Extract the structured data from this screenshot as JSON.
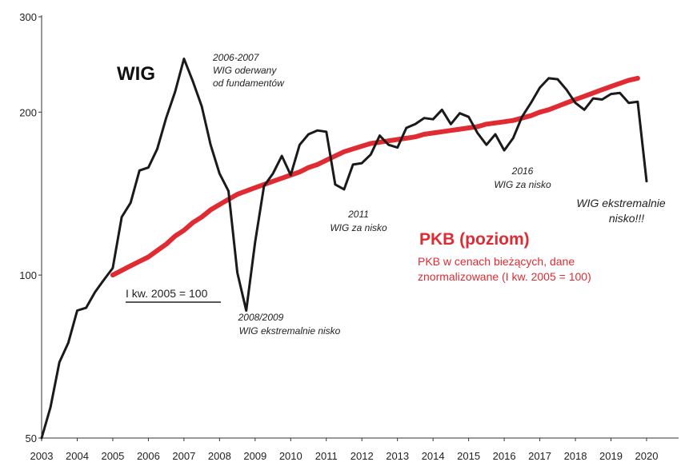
{
  "chart_data": {
    "type": "line",
    "yscale": "log",
    "ylim": [
      50,
      300
    ],
    "xlim": [
      2003,
      2020.9
    ],
    "y_ticks": [
      50,
      100,
      200,
      300
    ],
    "x_ticks": [
      2003,
      2004,
      2005,
      2006,
      2007,
      2008,
      2009,
      2010,
      2011,
      2012,
      2013,
      2014,
      2015,
      2016,
      2017,
      2018,
      2019,
      2020
    ],
    "grid": false,
    "colors": {
      "WIG": "#1a1a1a",
      "PKB": "#e02b33"
    },
    "series": [
      {
        "name": "WIG",
        "x": [
          2003.0,
          2003.25,
          2003.5,
          2003.75,
          2004.0,
          2004.25,
          2004.5,
          2004.75,
          2005.0,
          2005.25,
          2005.5,
          2005.75,
          2006.0,
          2006.25,
          2006.5,
          2006.75,
          2007.0,
          2007.25,
          2007.5,
          2007.75,
          2008.0,
          2008.25,
          2008.5,
          2008.75,
          2009.0,
          2009.25,
          2009.5,
          2009.75,
          2010.0,
          2010.25,
          2010.5,
          2010.75,
          2011.0,
          2011.25,
          2011.5,
          2011.75,
          2012.0,
          2012.25,
          2012.5,
          2012.75,
          2013.0,
          2013.25,
          2013.5,
          2013.75,
          2014.0,
          2014.25,
          2014.5,
          2014.75,
          2015.0,
          2015.25,
          2015.5,
          2015.75,
          2016.0,
          2016.25,
          2016.5,
          2016.75,
          2017.0,
          2017.25,
          2017.5,
          2017.75,
          2018.0,
          2018.25,
          2018.5,
          2018.75,
          2019.0,
          2019.25,
          2019.5,
          2019.75,
          2020.0
        ],
        "values": [
          50,
          57,
          69,
          75,
          86,
          87,
          93,
          98,
          103,
          128,
          136,
          156,
          158,
          171,
          195,
          218,
          251,
          228,
          205,
          174,
          154,
          143,
          101,
          86,
          115,
          146,
          154,
          166,
          153,
          174,
          182,
          185,
          184,
          147,
          144,
          160,
          161,
          167,
          181,
          174,
          172,
          187,
          190,
          195,
          194,
          202,
          190,
          199,
          196,
          183,
          174,
          182,
          170,
          179,
          196,
          208,
          222,
          231,
          230,
          220,
          208,
          202,
          212,
          211,
          216,
          217,
          208,
          209,
          149
        ]
      },
      {
        "name": "PKB (poziom)",
        "x": [
          2005.0,
          2005.25,
          2005.5,
          2005.75,
          2006.0,
          2006.25,
          2006.5,
          2006.75,
          2007.0,
          2007.25,
          2007.5,
          2007.75,
          2008.0,
          2008.25,
          2008.5,
          2008.75,
          2009.0,
          2009.25,
          2009.5,
          2009.75,
          2010.0,
          2010.25,
          2010.5,
          2010.75,
          2011.0,
          2011.25,
          2011.5,
          2011.75,
          2012.0,
          2012.25,
          2012.5,
          2012.75,
          2013.0,
          2013.25,
          2013.5,
          2013.75,
          2014.0,
          2014.25,
          2014.5,
          2014.75,
          2015.0,
          2015.25,
          2015.5,
          2015.75,
          2016.0,
          2016.25,
          2016.5,
          2016.75,
          2017.0,
          2017.25,
          2017.5,
          2017.75,
          2018.0,
          2018.25,
          2018.5,
          2018.75,
          2019.0,
          2019.25,
          2019.5,
          2019.75
        ],
        "values": [
          100,
          102,
          104,
          106,
          108,
          111,
          114,
          118,
          121,
          125,
          128,
          132,
          135,
          138,
          141,
          143,
          145,
          147,
          149,
          151,
          153,
          155,
          158,
          160,
          163,
          166,
          169,
          171,
          173,
          175,
          176,
          177,
          178,
          179,
          180,
          182,
          183,
          184,
          185,
          186,
          187,
          188,
          190,
          191,
          192,
          193,
          195,
          197,
          200,
          202,
          205,
          208,
          211,
          214,
          217,
          220,
          223,
          226,
          229,
          231
        ]
      }
    ],
    "annotations": {
      "wig_label": "WIG",
      "peak_2007": [
        "2006-2007",
        "WIG oderwany",
        "od fundamentów"
      ],
      "low_2009": [
        "2008/2009",
        "WIG ekstremalnie nisko"
      ],
      "low_2011": [
        "2011",
        "WIG za nisko"
      ],
      "low_2016": [
        "2016",
        "WIG za nisko"
      ],
      "low_2020": [
        "WIG ekstremalnie",
        "nisko!!!"
      ],
      "base_note": "I kw. 2005 = 100",
      "pkb_title": "PKB (poziom)",
      "pkb_subtitle": [
        "PKB w cenach bieżących, dane",
        "znormalizowane (I kw. 2005 = 100)"
      ]
    }
  }
}
